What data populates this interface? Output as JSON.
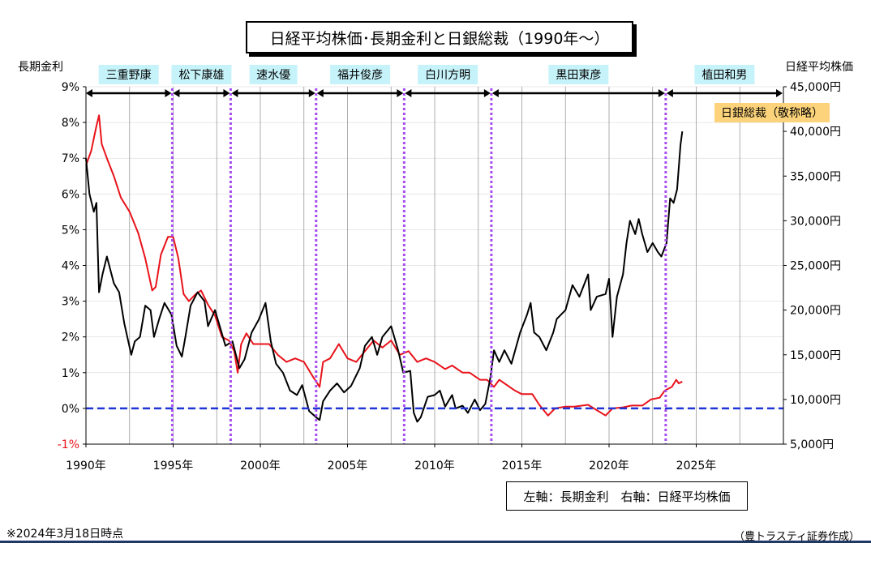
{
  "title": "日経平均株価･長期金利と日銀総裁（1990年～）",
  "left_axis_title": "長期金利",
  "right_axis_title": "日経平均株価",
  "legend_text": "左軸：長期金利　右軸：日経平均株価",
  "footnote": "※2024年3月18日時点",
  "source": "（豊トラスティ証券作成）",
  "governor_note": "日銀総裁（敬称略）",
  "colors": {
    "rate": "#e8131b",
    "nikkei": "#000000",
    "zero_line": "#1f35d6",
    "boundary": "#a64df0",
    "governor_label_bg": "#c6f3fa",
    "note_bg": "#fcd37a",
    "grid": "#9a9a9a"
  },
  "chart_data": {
    "type": "line",
    "x_range": [
      1990,
      2030
    ],
    "x_ticks": [
      {
        "value": 1990,
        "label": "1990年"
      },
      {
        "value": 1995,
        "label": "1995年"
      },
      {
        "value": 2000,
        "label": "2000年"
      },
      {
        "value": 2005,
        "label": "2005年"
      },
      {
        "value": 2010,
        "label": "2010年"
      },
      {
        "value": 2015,
        "label": "2015年"
      },
      {
        "value": 2020,
        "label": "2020年"
      },
      {
        "value": 2025,
        "label": "2025年"
      }
    ],
    "left_axis": {
      "range": [
        -1,
        9
      ],
      "ticks": [
        {
          "value": 9,
          "label": "9%"
        },
        {
          "value": 8,
          "label": "8%"
        },
        {
          "value": 7,
          "label": "7%"
        },
        {
          "value": 6,
          "label": "6%"
        },
        {
          "value": 5,
          "label": "5%"
        },
        {
          "value": 4,
          "label": "4%"
        },
        {
          "value": 3,
          "label": "3%"
        },
        {
          "value": 2,
          "label": "2%"
        },
        {
          "value": 1,
          "label": "1%"
        },
        {
          "value": 0,
          "label": "0%"
        },
        {
          "value": -1,
          "label": "-1%"
        }
      ]
    },
    "right_axis": {
      "range": [
        5000,
        45000
      ],
      "ticks": [
        {
          "value": 45000,
          "label": "45,000円"
        },
        {
          "value": 40000,
          "label": "40,000円"
        },
        {
          "value": 35000,
          "label": "35,000円"
        },
        {
          "value": 30000,
          "label": "30,000円"
        },
        {
          "value": 25000,
          "label": "25,000円"
        },
        {
          "value": 20000,
          "label": "20,000円"
        },
        {
          "value": 15000,
          "label": "15,000円"
        },
        {
          "value": 10000,
          "label": "10,000円"
        },
        {
          "value": 5000,
          "label": "5,000円"
        }
      ]
    },
    "series": [
      {
        "name": "長期金利",
        "axis": "left",
        "points": [
          [
            1990.0,
            6.8
          ],
          [
            1990.3,
            7.2
          ],
          [
            1990.6,
            7.9
          ],
          [
            1990.75,
            8.2
          ],
          [
            1990.9,
            7.4
          ],
          [
            1991.2,
            7.0
          ],
          [
            1991.6,
            6.5
          ],
          [
            1992.0,
            5.9
          ],
          [
            1992.5,
            5.5
          ],
          [
            1993.0,
            4.9
          ],
          [
            1993.4,
            4.2
          ],
          [
            1993.8,
            3.3
          ],
          [
            1994.0,
            3.4
          ],
          [
            1994.3,
            4.3
          ],
          [
            1994.7,
            4.8
          ],
          [
            1995.0,
            4.8
          ],
          [
            1995.3,
            4.2
          ],
          [
            1995.6,
            3.2
          ],
          [
            1995.9,
            3.0
          ],
          [
            1996.3,
            3.2
          ],
          [
            1996.6,
            3.3
          ],
          [
            1997.0,
            2.9
          ],
          [
            1997.4,
            2.6
          ],
          [
            1997.8,
            2.0
          ],
          [
            1998.2,
            1.9
          ],
          [
            1998.5,
            1.6
          ],
          [
            1998.7,
            1.0
          ],
          [
            1998.9,
            1.8
          ],
          [
            1999.2,
            2.1
          ],
          [
            1999.6,
            1.8
          ],
          [
            2000.0,
            1.8
          ],
          [
            2000.5,
            1.8
          ],
          [
            2001.0,
            1.5
          ],
          [
            2001.5,
            1.3
          ],
          [
            2002.0,
            1.4
          ],
          [
            2002.5,
            1.3
          ],
          [
            2003.0,
            0.9
          ],
          [
            2003.4,
            0.6
          ],
          [
            2003.6,
            1.3
          ],
          [
            2004.0,
            1.4
          ],
          [
            2004.5,
            1.8
          ],
          [
            2005.0,
            1.4
          ],
          [
            2005.5,
            1.3
          ],
          [
            2006.0,
            1.6
          ],
          [
            2006.5,
            1.9
          ],
          [
            2007.0,
            1.7
          ],
          [
            2007.5,
            1.9
          ],
          [
            2008.0,
            1.5
          ],
          [
            2008.5,
            1.6
          ],
          [
            2009.0,
            1.3
          ],
          [
            2009.5,
            1.4
          ],
          [
            2010.0,
            1.3
          ],
          [
            2010.6,
            1.1
          ],
          [
            2011.0,
            1.2
          ],
          [
            2011.6,
            1.0
          ],
          [
            2012.0,
            1.0
          ],
          [
            2012.6,
            0.8
          ],
          [
            2013.0,
            0.8
          ],
          [
            2013.4,
            0.6
          ],
          [
            2013.7,
            0.8
          ],
          [
            2014.0,
            0.7
          ],
          [
            2014.6,
            0.5
          ],
          [
            2015.0,
            0.4
          ],
          [
            2015.6,
            0.4
          ],
          [
            2016.0,
            0.1
          ],
          [
            2016.5,
            -0.2
          ],
          [
            2016.9,
            0.0
          ],
          [
            2017.5,
            0.05
          ],
          [
            2018.0,
            0.05
          ],
          [
            2018.8,
            0.1
          ],
          [
            2019.3,
            -0.05
          ],
          [
            2019.8,
            -0.2
          ],
          [
            2020.2,
            0.0
          ],
          [
            2020.8,
            0.03
          ],
          [
            2021.3,
            0.08
          ],
          [
            2021.9,
            0.08
          ],
          [
            2022.4,
            0.25
          ],
          [
            2022.9,
            0.3
          ],
          [
            2023.2,
            0.5
          ],
          [
            2023.6,
            0.6
          ],
          [
            2023.85,
            0.8
          ],
          [
            2024.0,
            0.7
          ],
          [
            2024.2,
            0.75
          ]
        ]
      },
      {
        "name": "日経平均株価",
        "axis": "right",
        "points": [
          [
            1990.0,
            37000
          ],
          [
            1990.2,
            33000
          ],
          [
            1990.45,
            31000
          ],
          [
            1990.6,
            32000
          ],
          [
            1990.75,
            22000
          ],
          [
            1990.95,
            24000
          ],
          [
            1991.2,
            26000
          ],
          [
            1991.6,
            23000
          ],
          [
            1991.9,
            22000
          ],
          [
            1992.2,
            18500
          ],
          [
            1992.6,
            15000
          ],
          [
            1992.8,
            16500
          ],
          [
            1993.1,
            17000
          ],
          [
            1993.4,
            20500
          ],
          [
            1993.7,
            20000
          ],
          [
            1993.9,
            17000
          ],
          [
            1994.2,
            19000
          ],
          [
            1994.5,
            20800
          ],
          [
            1994.9,
            19500
          ],
          [
            1995.2,
            16000
          ],
          [
            1995.5,
            14800
          ],
          [
            1995.7,
            17000
          ],
          [
            1996.0,
            20500
          ],
          [
            1996.4,
            22000
          ],
          [
            1996.8,
            21000
          ],
          [
            1997.0,
            18200
          ],
          [
            1997.4,
            20000
          ],
          [
            1997.7,
            18000
          ],
          [
            1998.0,
            16000
          ],
          [
            1998.4,
            16500
          ],
          [
            1998.8,
            13500
          ],
          [
            1999.1,
            14500
          ],
          [
            1999.5,
            17500
          ],
          [
            1999.9,
            18900
          ],
          [
            2000.3,
            20800
          ],
          [
            2000.6,
            16500
          ],
          [
            2000.9,
            14000
          ],
          [
            2001.3,
            13000
          ],
          [
            2001.7,
            11000
          ],
          [
            2002.1,
            10500
          ],
          [
            2002.4,
            11600
          ],
          [
            2002.8,
            8700
          ],
          [
            2003.2,
            8000
          ],
          [
            2003.4,
            7700
          ],
          [
            2003.6,
            9800
          ],
          [
            2004.0,
            11000
          ],
          [
            2004.4,
            11800
          ],
          [
            2004.8,
            10800
          ],
          [
            2005.2,
            11500
          ],
          [
            2005.7,
            13500
          ],
          [
            2006.0,
            16000
          ],
          [
            2006.4,
            17000
          ],
          [
            2006.7,
            15000
          ],
          [
            2007.0,
            17000
          ],
          [
            2007.5,
            18200
          ],
          [
            2007.9,
            15500
          ],
          [
            2008.2,
            13000
          ],
          [
            2008.6,
            13200
          ],
          [
            2008.8,
            8500
          ],
          [
            2009.0,
            7500
          ],
          [
            2009.2,
            8000
          ],
          [
            2009.6,
            10300
          ],
          [
            2010.0,
            10500
          ],
          [
            2010.3,
            11000
          ],
          [
            2010.6,
            9200
          ],
          [
            2011.0,
            10500
          ],
          [
            2011.2,
            9000
          ],
          [
            2011.6,
            9300
          ],
          [
            2011.9,
            8500
          ],
          [
            2012.3,
            10000
          ],
          [
            2012.6,
            8800
          ],
          [
            2012.9,
            9500
          ],
          [
            2013.2,
            12500
          ],
          [
            2013.4,
            15500
          ],
          [
            2013.7,
            14200
          ],
          [
            2014.0,
            15500
          ],
          [
            2014.4,
            14000
          ],
          [
            2014.9,
            17500
          ],
          [
            2015.3,
            19500
          ],
          [
            2015.5,
            20800
          ],
          [
            2015.7,
            17500
          ],
          [
            2016.0,
            17000
          ],
          [
            2016.4,
            15500
          ],
          [
            2016.8,
            17500
          ],
          [
            2017.0,
            19000
          ],
          [
            2017.5,
            20000
          ],
          [
            2017.9,
            22800
          ],
          [
            2018.3,
            21500
          ],
          [
            2018.8,
            24000
          ],
          [
            2018.95,
            20000
          ],
          [
            2019.3,
            21500
          ],
          [
            2019.8,
            21800
          ],
          [
            2020.0,
            23500
          ],
          [
            2020.2,
            17000
          ],
          [
            2020.45,
            21500
          ],
          [
            2020.8,
            24000
          ],
          [
            2021.0,
            27500
          ],
          [
            2021.2,
            30000
          ],
          [
            2021.5,
            28500
          ],
          [
            2021.7,
            30200
          ],
          [
            2021.9,
            28500
          ],
          [
            2022.2,
            26500
          ],
          [
            2022.5,
            27500
          ],
          [
            2022.8,
            26500
          ],
          [
            2023.0,
            26000
          ],
          [
            2023.3,
            27500
          ],
          [
            2023.5,
            32500
          ],
          [
            2023.7,
            32000
          ],
          [
            2023.9,
            33500
          ],
          [
            2024.0,
            36000
          ],
          [
            2024.1,
            38500
          ],
          [
            2024.2,
            40000
          ]
        ]
      }
    ],
    "governors": [
      {
        "name": "三重野康",
        "start": 1989.95,
        "end": 1994.95
      },
      {
        "name": "松下康雄",
        "start": 1994.95,
        "end": 1998.3
      },
      {
        "name": "速水優",
        "start": 1998.3,
        "end": 2003.2
      },
      {
        "name": "福井俊彦",
        "start": 2003.2,
        "end": 2008.25
      },
      {
        "name": "白川方明",
        "start": 2008.25,
        "end": 2013.25
      },
      {
        "name": "黒田東彦",
        "start": 2013.25,
        "end": 2023.25
      },
      {
        "name": "植田和男",
        "start": 2023.25,
        "end": 2030
      }
    ],
    "boundaries": [
      1994.95,
      1998.3,
      2003.2,
      2008.25,
      2013.25,
      2023.25
    ],
    "zero_line": 0,
    "grid": true
  }
}
